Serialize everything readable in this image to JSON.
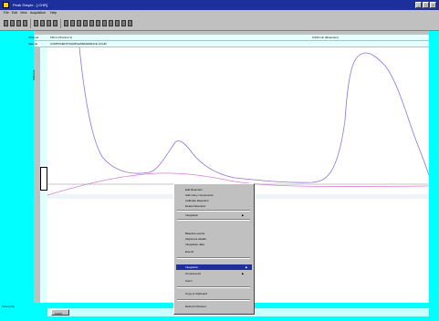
{
  "window": {
    "title": "Peak Simple - [.CHR]",
    "caption_buttons": [
      "_",
      "□",
      "×"
    ]
  },
  "menubar": {
    "items": [
      "File",
      "Edit",
      "View",
      "Acquisition",
      "Help"
    ]
  },
  "toolbar": {
    "icons": [
      "new-file-icon",
      "open-folder-icon",
      "save-icon",
      "print-icon",
      "pointer-icon",
      "zoom-icon",
      "scale-icon",
      "cursor-icon",
      "peak-icon"
    ]
  },
  "header_rows": {
    "row0_label": "Channel",
    "row0_value": "FID-1 (Channel 1)",
    "row0_right": "0.000 min (Retention)",
    "row1_label": "Sample",
    "row1_value": "COMPONENT/SAMPLE/REFERENCE 1/CHR"
  },
  "yaxis": {
    "title": "Millivolts"
  },
  "status": {
    "left_text": "Time (min)",
    "scroll_label": "0.000"
  },
  "context_menu": {
    "items": [
      {
        "label": "Edit Retention",
        "arrow": false
      },
      {
        "label": "Add many components",
        "arrow": false
      },
      {
        "label": "Calibrate Retention",
        "arrow": false
      },
      {
        "label": "Delete Retention",
        "arrow": false
      },
      {
        "label": "Integration",
        "arrow": true
      },
      {
        "label": "Baseline events",
        "arrow": false
      },
      {
        "label": "Alignment details",
        "arrow": false
      },
      {
        "label": "Integration data",
        "arrow": false
      },
      {
        "label": "Events",
        "arrow": false
      },
      {
        "label": "Integration",
        "arrow": true
      },
      {
        "label": "Components",
        "arrow": true
      },
      {
        "label": "Zoom",
        "arrow": false
      },
      {
        "label": "Copy to Clipboard",
        "arrow": false
      },
      {
        "label": "Refresh Channel",
        "arrow": false
      }
    ],
    "highlighted_label": "Integration"
  },
  "colors": {
    "titlebar": "#1c2f9c",
    "workspace_cyan": "#00ffff",
    "trace_primary": "#8b72e0",
    "trace_baseline": "#e07ad8",
    "highlight": "#1c2f9c"
  }
}
